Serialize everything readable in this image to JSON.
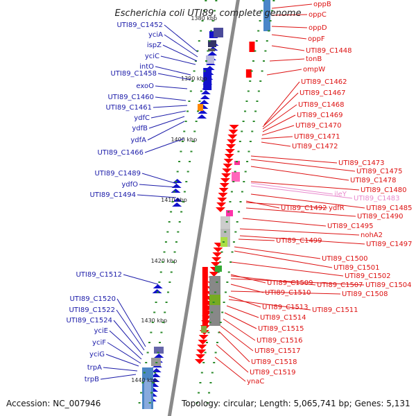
{
  "title": "Escherichia coli UTI89, complete genome",
  "accession": "Accession: NC_007946",
  "topology": "Topology: circular; Length: 5,065,741 bp; Genes: 5,131",
  "colors": {
    "backbone": "#8a8a8a",
    "plus_strand": "#1111cc",
    "minus_strand": "#ff0000",
    "tick": "#2a8a2a",
    "left_label": "#1a1aa8",
    "right_label": "#dd1111",
    "pseudo_label": "#e888cc"
  },
  "kbp_marks": [
    {
      "label": "1380 kbp"
    },
    {
      "label": "1390 kbp"
    },
    {
      "label": "1400 kbp"
    },
    {
      "label": "1410 kbp"
    },
    {
      "label": "1420 kbp"
    },
    {
      "label": "1430 kbp"
    },
    {
      "label": "1440 kbp"
    }
  ],
  "left_genes": [
    "UTI89_C1452",
    "yciA",
    "ispZ",
    "yciC",
    "intO",
    "UTI89_C1458",
    "exoO",
    "UTI89_C1460",
    "UTI89_C1461",
    "ydfC",
    "ydfB",
    "ydfA",
    "UTI89_C1466",
    "UTI89_C1489",
    "ydfO",
    "UTI89_C1494",
    "UTI89_C1512",
    "UTI89_C1520",
    "UTI89_C1522",
    "UTI89_C1524",
    "yciE",
    "yciF",
    "yciG",
    "trpA",
    "trpB"
  ],
  "right_genes": [
    "oppB",
    "oppC",
    "oppD",
    "oppF",
    "UTI89_C1448",
    "tonB",
    "ompW",
    "UTI89_C1462",
    "UTI89_C1467",
    "UTI89_C1468",
    "UTI89_C1469",
    "UTI89_C1470",
    "UTI89_C1471",
    "UTI89_C1472",
    "UTI89_C1473",
    "UTI89_C1475",
    "UTI89_C1478",
    "UTI89_C1480",
    "ileY",
    "UTI89_C1483",
    "UTI89_C1485",
    "UTI89_C1492",
    "ydfR",
    "UTI89_C1490",
    "UTI89_C1495",
    "nohA2",
    "UTI89_C1497",
    "UTI89_C1499",
    "UTI89_C1500",
    "UTI89_C1501",
    "UTI89_C1502",
    "UTI89_C1509",
    "UTI89_C1507",
    "UTI89_C1504",
    "UTI89_C1510",
    "UTI89_C1508",
    "UTI89_C1513",
    "UTI89_C1511",
    "UTI89_C1514",
    "UTI89_C1515",
    "UTI89_C1516",
    "UTI89_C1517",
    "UTI89_C1518",
    "UTI89_C1519",
    "ynaC"
  ],
  "pseudo_genes": [
    "ileY",
    "UTI89_C1483"
  ]
}
